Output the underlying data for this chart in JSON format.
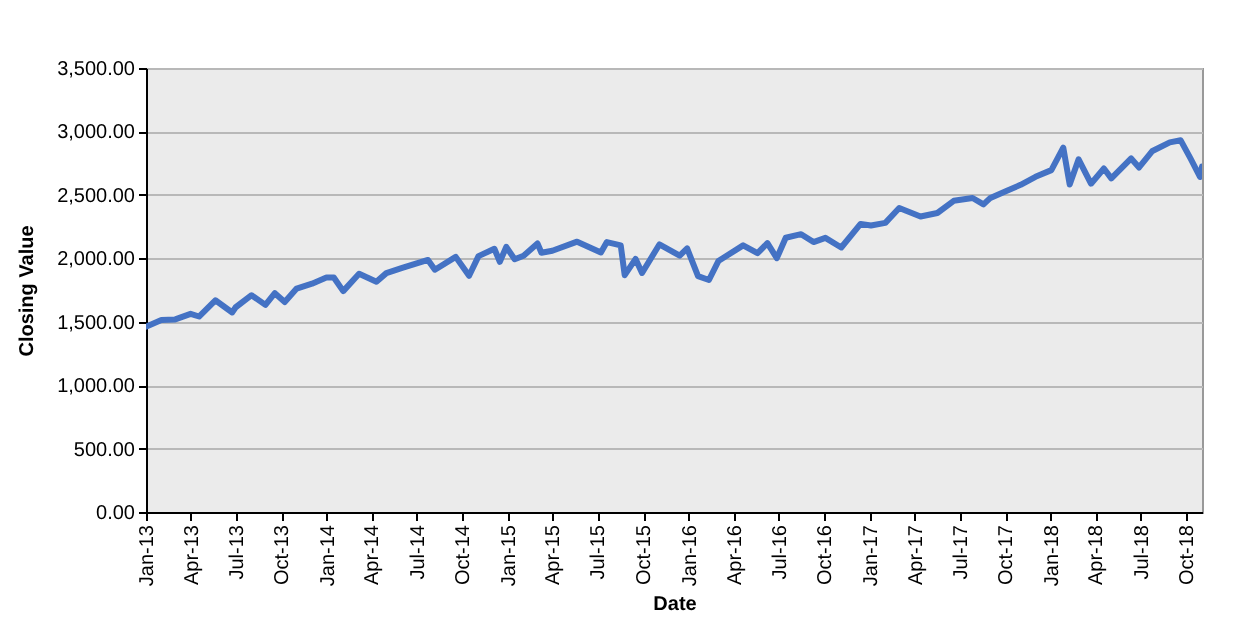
{
  "chart_data": {
    "type": "line",
    "xlabel": "Date",
    "ylabel": "Closing Value",
    "grid": "y",
    "marker": "none",
    "line_style": "solid",
    "x": [
      "2013-01-02",
      "2013-02-01",
      "2013-03-01",
      "2013-04-01",
      "2013-04-18",
      "2013-05-21",
      "2013-06-24",
      "2013-07-01",
      "2013-08-02",
      "2013-08-30",
      "2013-09-18",
      "2013-10-08",
      "2013-11-01",
      "2013-12-02",
      "2013-12-31",
      "2014-01-15",
      "2014-02-03",
      "2014-03-07",
      "2014-04-11",
      "2014-05-01",
      "2014-06-02",
      "2014-07-24",
      "2014-08-07",
      "2014-09-18",
      "2014-10-15",
      "2014-11-03",
      "2014-12-05",
      "2014-12-16",
      "2014-12-29",
      "2015-01-15",
      "2015-02-02",
      "2015-03-02",
      "2015-03-10",
      "2015-04-01",
      "2015-05-21",
      "2015-07-08",
      "2015-07-20",
      "2015-08-17",
      "2015-08-25",
      "2015-09-16",
      "2015-09-29",
      "2015-11-03",
      "2015-12-14",
      "2015-12-29",
      "2016-01-20",
      "2016-02-11",
      "2016-03-01",
      "2016-04-20",
      "2016-05-19",
      "2016-06-08",
      "2016-06-27",
      "2016-07-15",
      "2016-08-15",
      "2016-09-09",
      "2016-10-03",
      "2016-11-04",
      "2016-12-13",
      "2017-01-03",
      "2017-02-01",
      "2017-03-01",
      "2017-04-13",
      "2017-05-17",
      "2017-06-19",
      "2017-07-27",
      "2017-08-18",
      "2017-09-01",
      "2017-10-02",
      "2017-11-01",
      "2017-12-01",
      "2018-01-02",
      "2018-01-26",
      "2018-02-08",
      "2018-02-26",
      "2018-03-23",
      "2018-04-18",
      "2018-05-03",
      "2018-06-12",
      "2018-06-28",
      "2018-07-25",
      "2018-08-29",
      "2018-09-20",
      "2018-10-10",
      "2018-10-29",
      "2018-11-02"
    ],
    "series": [
      {
        "color": "#4472c4",
        "values": [
          1462,
          1513,
          1518,
          1562,
          1541,
          1669,
          1573,
          1614,
          1709,
          1633,
          1725,
          1655,
          1761,
          1800,
          1848,
          1848,
          1741,
          1878,
          1815,
          1883,
          1924,
          1987,
          1910,
          2011,
          1862,
          2017,
          2075,
          1972,
          2090,
          1992,
          2020,
          2117,
          2044,
          2059,
          2131,
          2046,
          2128,
          2102,
          1867,
          1995,
          1884,
          2109,
          2021,
          2078,
          1859,
          1829,
          1978,
          2102,
          2040,
          2119,
          2001,
          2162,
          2190,
          2128,
          2161,
          2085,
          2271,
          2258,
          2279,
          2396,
          2329,
          2357,
          2453,
          2475,
          2425,
          2476,
          2529,
          2579,
          2642,
          2695,
          2873,
          2581,
          2780,
          2588,
          2708,
          2630,
          2787,
          2716,
          2846,
          2914,
          2930,
          2785,
          2641,
          2723
        ]
      }
    ],
    "xlim": [
      "2013-01-01",
      "2018-11-02"
    ],
    "xticks": [
      {
        "value": "2013-01-01",
        "label": "Jan-13"
      },
      {
        "value": "2013-04-01",
        "label": "Apr-13"
      },
      {
        "value": "2013-07-01",
        "label": "Jul-13"
      },
      {
        "value": "2013-10-01",
        "label": "Oct-13"
      },
      {
        "value": "2014-01-01",
        "label": "Jan-14"
      },
      {
        "value": "2014-04-01",
        "label": "Apr-14"
      },
      {
        "value": "2014-07-01",
        "label": "Jul-14"
      },
      {
        "value": "2014-10-01",
        "label": "Oct-14"
      },
      {
        "value": "2015-01-01",
        "label": "Jan-15"
      },
      {
        "value": "2015-04-01",
        "label": "Apr-15"
      },
      {
        "value": "2015-07-01",
        "label": "Jul-15"
      },
      {
        "value": "2015-10-01",
        "label": "Oct-15"
      },
      {
        "value": "2016-01-01",
        "label": "Jan-16"
      },
      {
        "value": "2016-04-01",
        "label": "Apr-16"
      },
      {
        "value": "2016-07-01",
        "label": "Jul-16"
      },
      {
        "value": "2016-10-01",
        "label": "Oct-16"
      },
      {
        "value": "2017-01-01",
        "label": "Jan-17"
      },
      {
        "value": "2017-04-01",
        "label": "Apr-17"
      },
      {
        "value": "2017-07-01",
        "label": "Jul-17"
      },
      {
        "value": "2017-10-01",
        "label": "Oct-17"
      },
      {
        "value": "2018-01-01",
        "label": "Jan-18"
      },
      {
        "value": "2018-04-01",
        "label": "Apr-18"
      },
      {
        "value": "2018-07-01",
        "label": "Jul-18"
      },
      {
        "value": "2018-10-01",
        "label": "Oct-18"
      }
    ],
    "ylim": [
      0,
      3500
    ],
    "yticks": [
      {
        "value": 0,
        "label": "0.00"
      },
      {
        "value": 500,
        "label": "500.00"
      },
      {
        "value": 1000,
        "label": "1,000.00"
      },
      {
        "value": 1500,
        "label": "1,500.00"
      },
      {
        "value": 2000,
        "label": "2,000.00"
      },
      {
        "value": 2500,
        "label": "2,500.00"
      },
      {
        "value": 3000,
        "label": "3,000.00"
      },
      {
        "value": 3500,
        "label": "3,500.00"
      }
    ]
  }
}
